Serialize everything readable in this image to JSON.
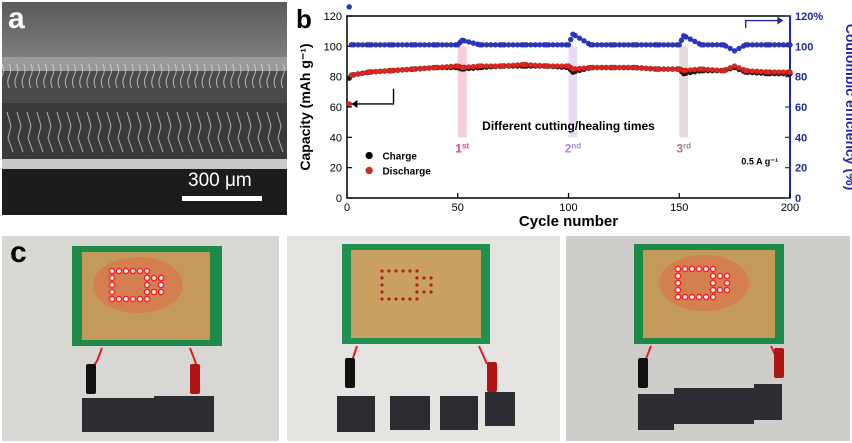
{
  "panel_a": {
    "label": "a",
    "scale_bar": "300 μm"
  },
  "panel_b": {
    "label": "b"
  },
  "panel_c": {
    "label": "c"
  },
  "chart_data": {
    "type": "scatter",
    "xlabel": "Cycle number",
    "ylabel_left": "Capacity (mAh g⁻¹)",
    "ylabel_right": "Coulombic efficiency (%)",
    "xlim": [
      0,
      200
    ],
    "xticks": [
      0,
      50,
      100,
      150,
      200
    ],
    "ylim_left": [
      0,
      120
    ],
    "yticks_left": [
      0,
      20,
      40,
      60,
      80,
      100,
      120
    ],
    "ylim_right": [
      0,
      120
    ],
    "yticks_right": [
      "0",
      "20",
      "40",
      "60",
      "80",
      "100",
      "120%"
    ],
    "annotation_center": "Different cutting/healing times",
    "annotation_rate": "0.5 A g⁻¹",
    "events": [
      {
        "x": 52,
        "label": "1",
        "sup": "st",
        "color": "#e34b6f"
      },
      {
        "x": 102,
        "label": "2",
        "sup": "nd",
        "color": "#a989d6"
      },
      {
        "x": 152,
        "label": "3",
        "sup": "rd",
        "color": "#a27a80"
      }
    ],
    "legend": [
      {
        "name": "Charge",
        "color": "#000000"
      },
      {
        "name": "Discharge",
        "color": "#e0261f"
      }
    ],
    "series": [
      {
        "name": "Charge",
        "axis": "left",
        "values_x": [
          1,
          2,
          10,
          20,
          30,
          40,
          50,
          52,
          60,
          70,
          80,
          90,
          100,
          102,
          110,
          120,
          130,
          140,
          150,
          152,
          160,
          170,
          175,
          180,
          190,
          200
        ],
        "values_y": [
          79,
          81,
          83,
          84,
          85,
          86,
          86,
          85,
          86,
          87,
          87,
          87,
          86,
          83,
          86,
          86,
          86,
          85,
          85,
          82,
          84,
          84,
          86,
          83,
          82,
          82
        ]
      },
      {
        "name": "Discharge",
        "axis": "left",
        "values_x": [
          1,
          2,
          10,
          20,
          30,
          40,
          50,
          52,
          60,
          70,
          80,
          90,
          100,
          102,
          110,
          120,
          130,
          140,
          150,
          152,
          160,
          170,
          175,
          180,
          190,
          200
        ],
        "values_y": [
          62,
          81,
          83,
          84,
          85,
          86,
          87,
          86,
          87,
          87,
          88,
          87,
          87,
          85,
          86,
          86,
          86,
          85,
          85,
          84,
          85,
          84,
          87,
          84,
          83,
          83
        ]
      },
      {
        "name": "Coulombic efficiency",
        "axis": "right",
        "values_x": [
          1,
          2,
          10,
          20,
          30,
          40,
          50,
          52,
          60,
          70,
          80,
          90,
          100,
          102,
          110,
          120,
          130,
          140,
          150,
          152,
          160,
          170,
          175,
          180,
          190,
          200
        ],
        "values_y": [
          126,
          101,
          101,
          101,
          101,
          101,
          101,
          104,
          101,
          101,
          101,
          101,
          101,
          108,
          101,
          101,
          101,
          101,
          101,
          107,
          101,
          101,
          97,
          101,
          101,
          101
        ]
      }
    ],
    "series_colors": {
      "Charge": "#1a1a1a",
      "Discharge": "#e0261f",
      "Coulombic efficiency": "#2a34c8"
    },
    "axis_colors": {
      "left": "#000000",
      "right": "#1f2a9c"
    }
  }
}
